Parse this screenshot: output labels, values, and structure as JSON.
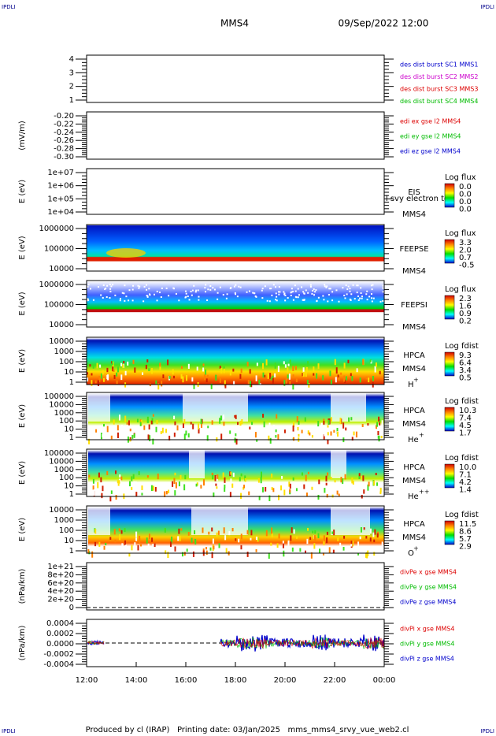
{
  "header": {
    "corner_left": "IPDLI",
    "corner_right": "IPDLI",
    "mission": "MMS4",
    "date": "09/Sep/2022 12:00"
  },
  "footer": {
    "corner_left": "IPDLI",
    "corner_right": "IPDLI",
    "text": "Produced by cl (IRAP)   Printing date: 03/Jan/2025   mms_mms4_srvy_vue_web2.cl"
  },
  "xaxis": {
    "ticks": [
      "12:00",
      "14:00",
      "16:00",
      "18:00",
      "20:00",
      "22:00",
      "00:00"
    ]
  },
  "panels": [
    {
      "yticks": [
        "4",
        "3",
        "2",
        "1"
      ],
      "legend": [
        {
          "text": "des dist burst SC1 MMS1",
          "color": "#0000cc"
        },
        {
          "text": "des dist burst SC2 MMS2",
          "color": "#cc00cc"
        },
        {
          "text": "des dist burst SC3 MMS3",
          "color": "#dd0000"
        },
        {
          "text": "des dist burst SC4 MMS4",
          "color": "#00bb00"
        }
      ]
    },
    {
      "ylabel": "(mV/m)",
      "yticks": [
        "-0.20",
        "-0.22",
        "-0.24",
        "-0.26",
        "-0.28",
        "-0.30"
      ],
      "legend": [
        {
          "text": "edi ex gse l2 MMS4",
          "color": "#dd0000"
        },
        {
          "text": "edi ey gse l2 MMS4",
          "color": "#00bb00"
        },
        {
          "text": "edi ez gse l2 MMS4",
          "color": "#0000cc"
        }
      ]
    },
    {
      "ylabel": "E (eV)",
      "yticks": [
        "1e+07",
        "1e+06",
        "1e+05",
        "1e+04"
      ],
      "instrument": "EIS",
      "probe": "MMS4",
      "note": "l svy electron to",
      "colorbar": {
        "title": "Log flux",
        "labels": [
          "0.0",
          "0.0",
          "0.0",
          "0.0"
        ]
      }
    },
    {
      "ylabel": "E (eV)",
      "yticks": [
        "1000000",
        "100000",
        "10000"
      ],
      "instrument": "FEEPSE",
      "probe": "MMS4",
      "colorbar": {
        "title": "Log flux",
        "labels": [
          "3.3",
          "2.0",
          "0.7",
          "-0.5"
        ]
      }
    },
    {
      "ylabel": "E (eV)",
      "yticks": [
        "1000000",
        "100000",
        "10000"
      ],
      "instrument": "FEEPSI",
      "probe": "MMS4",
      "colorbar": {
        "title": "Log flux",
        "labels": [
          "2.3",
          "1.6",
          "0.9",
          "0.2"
        ]
      }
    },
    {
      "ylabel": "E (eV)",
      "yticks": [
        "10000",
        "1000",
        "100",
        "10",
        "1"
      ],
      "instrument": "HPCA",
      "probe": "MMS4",
      "species": {
        "base": "H",
        "sup": "+"
      },
      "colorbar": {
        "title": "Log fdist",
        "labels": [
          "9.3",
          "6.4",
          "3.4",
          "0.5"
        ]
      }
    },
    {
      "ylabel": "E (eV)",
      "yticks": [
        "100000",
        "10000",
        "1000",
        "100",
        "10",
        "1"
      ],
      "instrument": "HPCA",
      "probe": "MMS4",
      "species": {
        "base": "He",
        "sup": "+"
      },
      "colorbar": {
        "title": "Log fdist",
        "labels": [
          "10.3",
          "7.4",
          "4.5",
          "1.7"
        ]
      }
    },
    {
      "ylabel": "E (eV)",
      "yticks": [
        "100000",
        "10000",
        "1000",
        "100",
        "10",
        "1"
      ],
      "instrument": "HPCA",
      "probe": "MMS4",
      "species": {
        "base": "He",
        "sup": "++"
      },
      "colorbar": {
        "title": "Log fdist",
        "labels": [
          "10.0",
          "7.1",
          "4.2",
          "1.4"
        ]
      }
    },
    {
      "ylabel": "E (eV)",
      "yticks": [
        "10000",
        "1000",
        "100",
        "10",
        "1"
      ],
      "instrument": "HPCA",
      "probe": "MMS4",
      "species": {
        "base": "O",
        "sup": "+"
      },
      "colorbar": {
        "title": "Log fdist",
        "labels": [
          "11.5",
          "8.6",
          "5.7",
          "2.9"
        ]
      }
    },
    {
      "ylabel": "(nPa/km)",
      "yticks": [
        "1e+21",
        "8e+20",
        "6e+20",
        "4e+20",
        "2e+20",
        "0"
      ],
      "legend": [
        {
          "text": "divPe x gse MMS4",
          "color": "#dd0000"
        },
        {
          "text": "divPe y gse MMS4",
          "color": "#00bb00"
        },
        {
          "text": "divPe z gse MMS4",
          "color": "#0000cc"
        }
      ]
    },
    {
      "ylabel": "(nPa/km)",
      "yticks": [
        "0.0004",
        "0.0002",
        "0.0000",
        "-0.0002",
        "-0.0004"
      ],
      "legend": [
        {
          "text": "divPi x gse MMS4",
          "color": "#dd0000"
        },
        {
          "text": "divPi y gse MMS4",
          "color": "#00bb00"
        },
        {
          "text": "divPi z gse MMS4",
          "color": "#0000cc"
        }
      ]
    }
  ]
}
